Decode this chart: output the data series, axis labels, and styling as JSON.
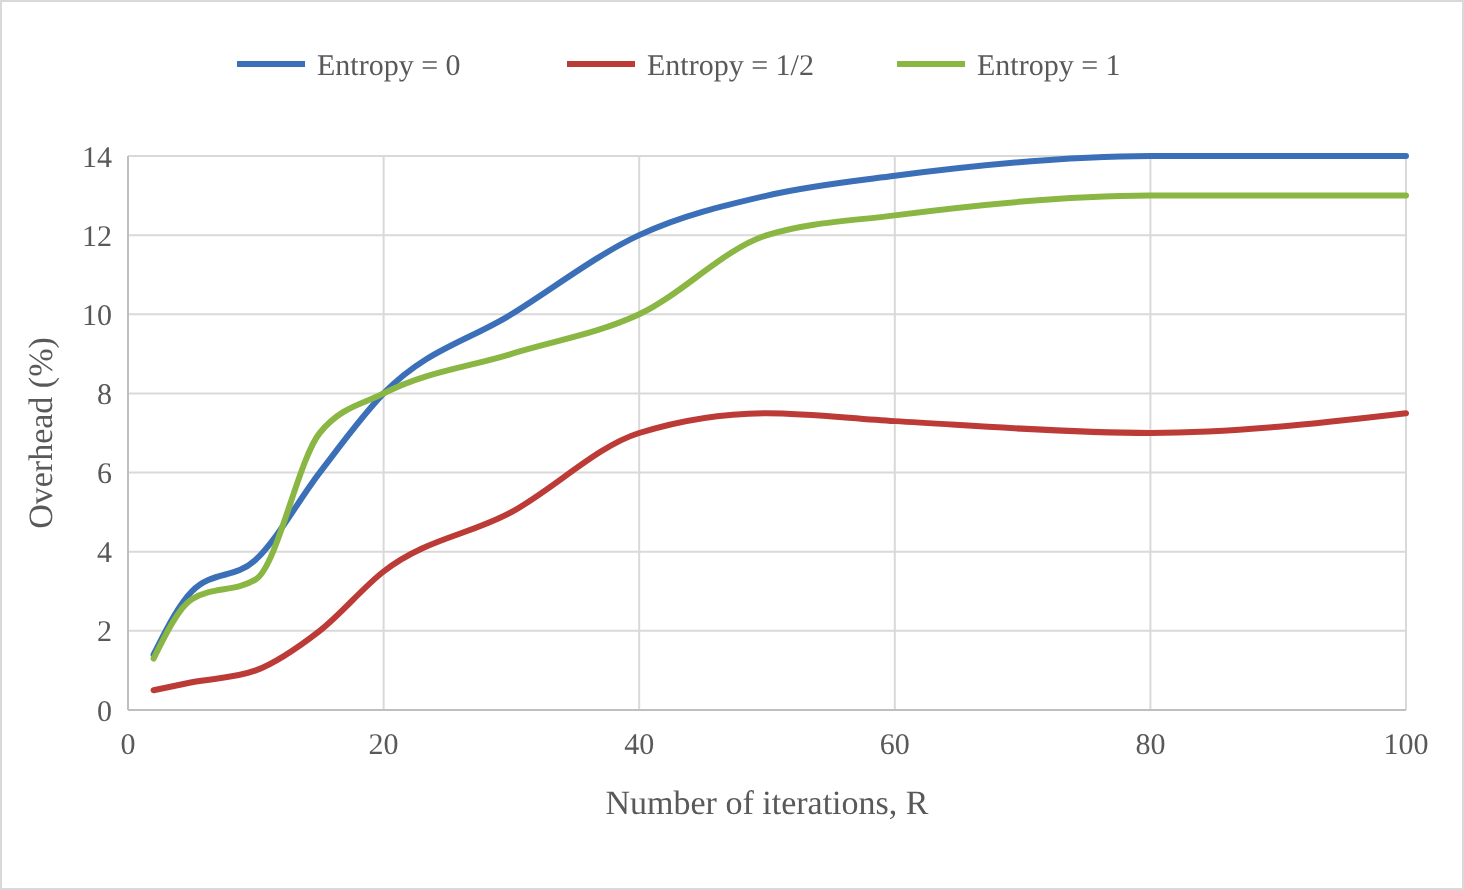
{
  "chart_data": {
    "type": "line",
    "xlabel": "Number of iterations, R",
    "ylabel": "Overhead (%)",
    "x": [
      2,
      5,
      10,
      15,
      20,
      30,
      40,
      50,
      60,
      80,
      100
    ],
    "series": [
      {
        "name": "Entropy = 0",
        "color": "#3b70b8",
        "values": [
          1.4,
          3,
          3.8,
          6,
          8,
          10,
          12,
          13,
          13.5,
          14,
          14
        ]
      },
      {
        "name": "Entropy = 1/2",
        "color": "#bc3b36",
        "values": [
          0.5,
          0.7,
          1,
          2,
          3.5,
          5,
          7,
          7.5,
          7.3,
          7,
          7.5
        ]
      },
      {
        "name": "Entropy = 1",
        "color": "#8ab643",
        "values": [
          1.3,
          2.8,
          3.3,
          7,
          8,
          9,
          10,
          12,
          12.5,
          13,
          13
        ]
      }
    ],
    "xlim": [
      0,
      100
    ],
    "xticks": [
      0,
      20,
      40,
      60,
      80,
      100
    ],
    "ylim": [
      0,
      14
    ],
    "yticks": [
      0,
      2,
      4,
      6,
      8,
      10,
      12,
      14
    ],
    "grid": true,
    "legend": "top",
    "marker": "none",
    "line_style": "solid"
  }
}
